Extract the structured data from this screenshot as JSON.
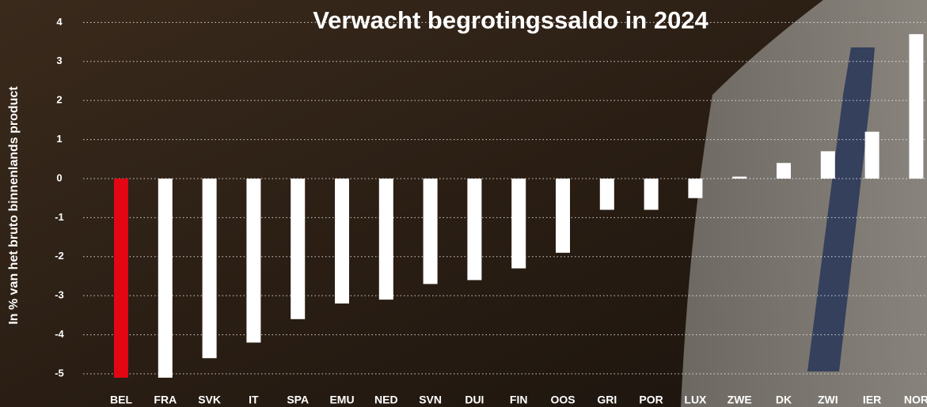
{
  "chart_data": {
    "type": "bar",
    "title": "Verwacht begrotingssaldo in 2024",
    "y_label": "In % van het bruto binnenlands product",
    "categories": [
      "BEL",
      "FRA",
      "SVK",
      "IT",
      "SPA",
      "EMU",
      "NED",
      "SVN",
      "DUI",
      "FIN",
      "OOS",
      "GRI",
      "POR",
      "LUX",
      "ZWE",
      "DK",
      "ZWI",
      "IER",
      "NOR"
    ],
    "values": [
      -5.1,
      -5.1,
      -4.6,
      -4.2,
      -3.6,
      -3.2,
      -3.1,
      -2.7,
      -2.6,
      -2.3,
      -1.9,
      -0.8,
      -0.8,
      -0.5,
      0.05,
      0.4,
      0.7,
      1.2,
      3.7
    ],
    "colors": [
      "#e30613",
      "#ffffff",
      "#ffffff",
      "#ffffff",
      "#ffffff",
      "#ffffff",
      "#ffffff",
      "#ffffff",
      "#ffffff",
      "#ffffff",
      "#ffffff",
      "#ffffff",
      "#ffffff",
      "#ffffff",
      "#ffffff",
      "#ffffff",
      "#ffffff",
      "#ffffff",
      "#ffffff"
    ],
    "ylim": [
      -5.3,
      4.4
    ],
    "yticks": [
      -5,
      -4,
      -3,
      -2,
      -1,
      0,
      1,
      2,
      3,
      4
    ],
    "grid": true
  }
}
